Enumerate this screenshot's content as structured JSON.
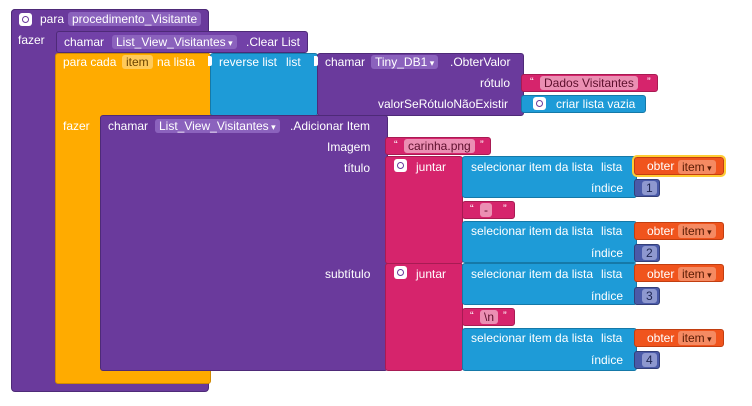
{
  "procedure": {
    "keyword": "para",
    "name": "procedimento_Visitante",
    "do_label": "fazer"
  },
  "clear_call": {
    "call_label": "chamar",
    "component": "List_View_Visitantes",
    "method": ".Clear List"
  },
  "foreach": {
    "prefix": "para cada",
    "var": "item",
    "suffix": "na lista",
    "do_label": "fazer"
  },
  "reverse": {
    "label": "reverse list",
    "param": "list"
  },
  "getvalue": {
    "call_label": "chamar",
    "component": "Tiny_DB1",
    "method": ".ObterValor",
    "tag_label": "rótulo",
    "tag_value": "Dados Visitantes",
    "default_label": "valorSeRótuloNãoExistir",
    "default_value": "criar lista vazia"
  },
  "additem": {
    "call_label": "chamar",
    "component": "List_View_Visitantes",
    "method": ".Adicionar Item",
    "image_label": "Imagem",
    "image_value": "carinha.png",
    "title_label": "título",
    "subtitle_label": "subtítulo"
  },
  "join_label": "juntar",
  "select_label": "selecionar item da lista",
  "list_label": "lista",
  "index_label": "índice",
  "get_label": "obter",
  "get_var": "item",
  "separator_dash": "-",
  "separator_newline": "\\n",
  "indices": [
    "1",
    "2",
    "3",
    "4"
  ]
}
